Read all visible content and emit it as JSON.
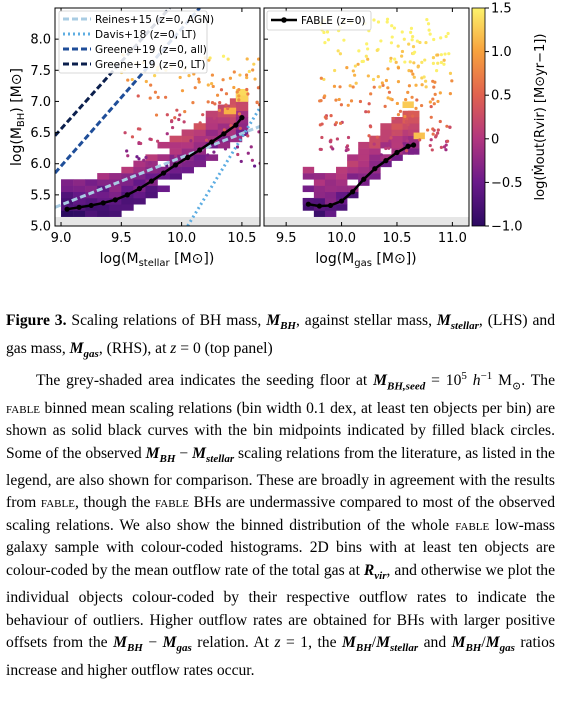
{
  "figure": {
    "left_panel": {
      "xlabel": "log(M",
      "xlabel_sub": "stellar",
      "xlabel_unit": " [M",
      "xlabel_end": "])",
      "ylabel": "log(M",
      "ylabel_sub": "BH",
      "ylabel_unit": ") [M",
      "ylabel_end": "]",
      "xticks": [
        "9.0",
        "9.5",
        "10.0",
        "10.5"
      ],
      "yticks": [
        "5.0",
        "5.5",
        "6.0",
        "6.5",
        "7.0",
        "7.5",
        "8.0"
      ],
      "legend": [
        {
          "label": "Reines+15 (z=0, AGN)",
          "color": "#a9cce3",
          "style": "dashed"
        },
        {
          "label": "Davis+18 (z=0, LT)",
          "color": "#5dade2",
          "style": "dotted"
        },
        {
          "label": "Greene+19 (z=0, all)",
          "color": "#1f4e99",
          "style": "dashed"
        },
        {
          "label": "Greene+19 (z=0, LT)",
          "color": "#0b1f4d",
          "style": "dashed"
        }
      ]
    },
    "right_panel": {
      "xlabel": "log(M",
      "xlabel_sub": "gas",
      "xlabel_unit": " [M",
      "xlabel_end": "])",
      "xticks": [
        "9.5",
        "10.0",
        "10.5",
        "11.0"
      ],
      "legend": [
        {
          "label": "FABLE (z=0)",
          "color": "#000000",
          "style": "solid"
        }
      ]
    },
    "colorbar": {
      "label": "log(Ṁout(Rvir) [M⊙yr−1])",
      "ticks": [
        "1.5",
        "1.0",
        "0.5",
        "0",
        "−0.5",
        "−1.0"
      ],
      "vmin": -1.0,
      "vmax": 1.5,
      "colors": [
        "#2c0a61",
        "#6a1a8a",
        "#b2367f",
        "#e0614f",
        "#f7a13d",
        "#fcf26c"
      ]
    }
  },
  "chart_data": [
    {
      "type": "line",
      "panel": "left",
      "xlabel": "log(Mstellar [M⊙])",
      "ylabel": "log(MBH [M⊙])",
      "xlim": [
        8.95,
        10.65
      ],
      "ylim": [
        5.0,
        8.5
      ],
      "series": [
        {
          "name": "FABLE (z=0)",
          "x": [
            9.05,
            9.15,
            9.25,
            9.35,
            9.45,
            9.55,
            9.65,
            9.75,
            9.85,
            9.95,
            10.05,
            10.15,
            10.25,
            10.35,
            10.45,
            10.5
          ],
          "y": [
            5.27,
            5.3,
            5.33,
            5.37,
            5.42,
            5.5,
            5.6,
            5.72,
            5.85,
            5.98,
            6.1,
            6.22,
            6.35,
            6.48,
            6.62,
            6.74
          ]
        },
        {
          "name": "Reines+15 (z=0, AGN)",
          "x": [
            8.95,
            10.65
          ],
          "y": [
            5.3,
            6.6
          ]
        },
        {
          "name": "Davis+18 (z=0, LT)",
          "x": [
            10.05,
            10.65
          ],
          "y": [
            5.0,
            6.9
          ]
        },
        {
          "name": "Greene+19 (z=0, all)",
          "x": [
            8.95,
            10.15
          ],
          "y": [
            5.85,
            8.5
          ]
        },
        {
          "name": "Greene+19 (z=0, LT)",
          "x": [
            8.95,
            9.9
          ],
          "y": [
            6.45,
            8.5
          ]
        }
      ],
      "seeding_floor": 5.15
    },
    {
      "type": "line",
      "panel": "right",
      "xlabel": "log(Mgas [M⊙])",
      "xlim": [
        9.3,
        11.15
      ],
      "ylim": [
        5.0,
        8.5
      ],
      "series": [
        {
          "name": "FABLE (z=0)",
          "x": [
            9.7,
            9.8,
            9.9,
            10.0,
            10.1,
            10.2,
            10.3,
            10.4,
            10.5,
            10.6,
            10.65
          ],
          "y": [
            5.35,
            5.32,
            5.33,
            5.4,
            5.55,
            5.75,
            5.92,
            6.05,
            6.18,
            6.28,
            6.3
          ]
        }
      ],
      "seeding_floor": 5.15
    }
  ],
  "caption": {
    "fig_label": "Figure 3.",
    "p1_a": " Scaling relations of BH mass, ",
    "m_bh": "M",
    "m_bh_sub": "BH",
    "p1_b": ", against stellar mass, ",
    "m_st_sub": "stellar",
    "p1_c": ", (LHS) and gas mass, ",
    "m_gas_sub": "gas",
    "p1_d": ", (RHS), at ",
    "z0": "z",
    "p1_e": " = 0 (top panel)",
    "p2_a": "The grey-shaded area indicates the seeding floor at ",
    "seed_sub": "BH,seed",
    "p2_b": " = 10",
    "p2_sup5": "5",
    "p2_h": " h",
    "p2_hsup": "−1",
    "p2_c": " M",
    "p2_sun": "⊙",
    "p2_d": ". The ",
    "fable": "fable",
    "p2_e": " binned mean scaling relations (bin width 0.1 dex, at least ten objects per bin) are shown as solid black curves with the bin midpoints indicated by filled black circles. Some of the observed ",
    "p2_f": " − ",
    "p2_g": " scaling relations from the literature, as listed in the legend, are also shown for comparison. These are broadly in agreement with the results from ",
    "p2_h2": ", though the ",
    "p2_i": " BHs are undermassive compared to most of the observed scaling relations. We also show the binned distribution of the whole ",
    "p2_j": " low-mass galaxy sample with colour-coded histograms. 2D bins with at least ten objects are colour-coded by the mean outflow rate of the total gas at ",
    "r_vir": "R",
    "r_vir_sub": "vir",
    "p2_k": ", and otherwise we plot the individual objects colour-coded by their respective outflow rates to indicate the behaviour of outliers. Higher outflow rates are obtained for BHs with larger positive offsets from the ",
    "p2_l": " − ",
    "p2_m": " relation. At ",
    "z1": "z",
    "p2_n": " = 1, the ",
    "p2_o": "/",
    "p2_p": " and ",
    "p2_q": "/",
    "p2_r": " ratios increase and higher outflow rates occur."
  }
}
